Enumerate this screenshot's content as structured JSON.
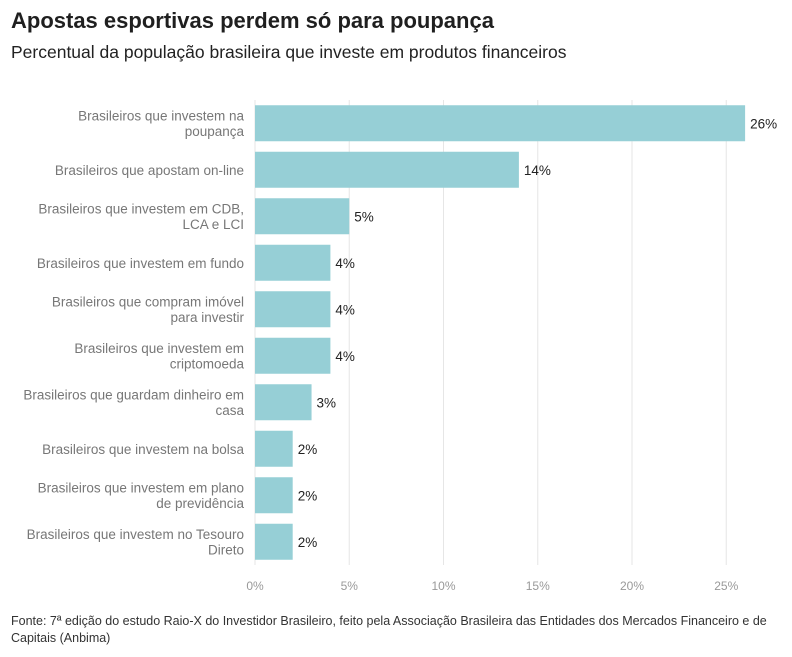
{
  "title": "Apostas esportivas perdem só para poupança",
  "subtitle": "Percentual da população brasileira que investe em produtos financeiros",
  "source": "Fonte: 7ª edição do estudo Raio-X do Investidor Brasileiro, feito pela Associação Brasileira das Entidades dos Mercados Financeiro e de Capitais (Anbima)",
  "colors": {
    "bar": "#96cfd6",
    "grid": "#e6e6e6"
  },
  "chart_data": {
    "type": "bar",
    "orientation": "horizontal",
    "categories": [
      [
        "Brasileiros que investem na",
        "poupança"
      ],
      [
        "Brasileiros que apostam on-line"
      ],
      [
        "Brasileiros que investem em CDB,",
        "LCA e LCI"
      ],
      [
        "Brasileiros que investem em fundo"
      ],
      [
        "Brasileiros que compram imóvel",
        "para investir"
      ],
      [
        "Brasileiros que investem em",
        "criptomoeda"
      ],
      [
        "Brasileiros que guardam dinheiro em",
        "casa"
      ],
      [
        "Brasileiros que investem na bolsa"
      ],
      [
        "Brasileiros que investem em plano",
        "de previdência"
      ],
      [
        "Brasileiros que investem no Tesouro",
        "Direto"
      ]
    ],
    "values": [
      26,
      14,
      5,
      4,
      4,
      4,
      3,
      2,
      2,
      2
    ],
    "value_labels": [
      "26%",
      "14%",
      "5%",
      "4%",
      "4%",
      "4%",
      "3%",
      "2%",
      "2%",
      "2%"
    ],
    "xticks": [
      0,
      5,
      10,
      15,
      20,
      25
    ],
    "xtick_labels": [
      "0%",
      "5%",
      "10%",
      "15%",
      "20%",
      "25%"
    ],
    "xlim": [
      0,
      28
    ],
    "grid": true
  }
}
